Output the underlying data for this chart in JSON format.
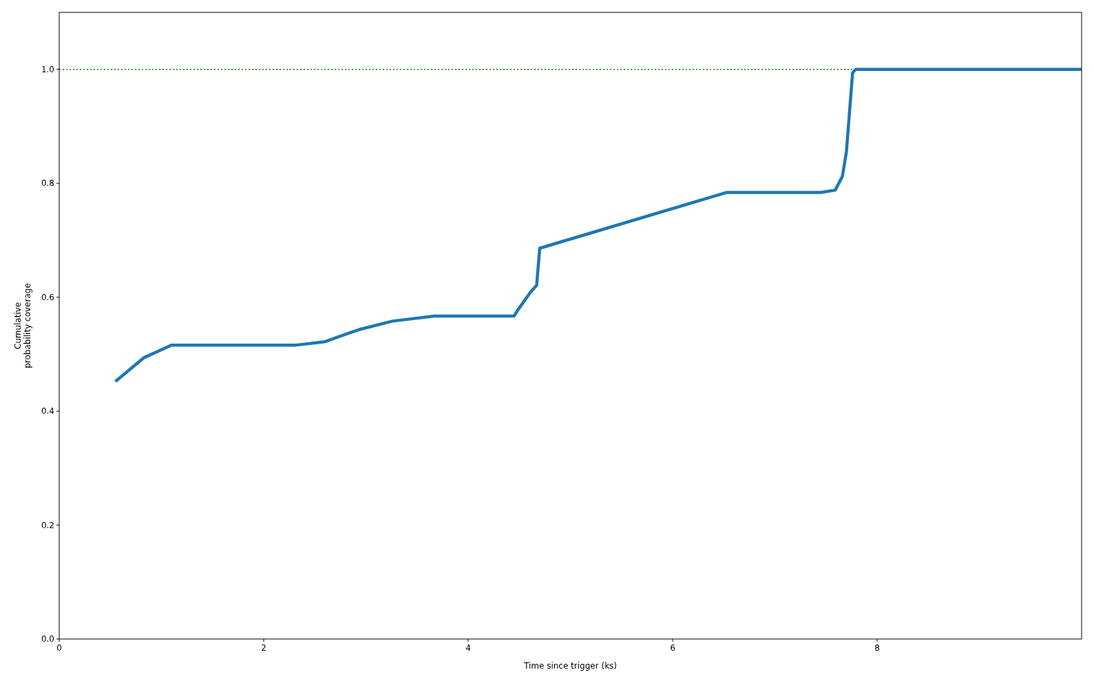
{
  "chart_data": {
    "type": "line",
    "xlabel": "Time since trigger (ks)",
    "ylabel": "Cumulative\nprobability coverage",
    "xlim": [
      0,
      10
    ],
    "xticks": [
      0,
      2,
      4,
      6,
      8
    ],
    "ylim": [
      0,
      1.1
    ],
    "yticks": [
      {
        "value": 0,
        "label": "0.0"
      },
      0.2,
      0.4,
      0.6,
      0.8,
      {
        "value": 1,
        "label": "1.0"
      }
    ],
    "x": [
      0.55,
      0.83,
      1.1,
      2.32,
      2.6,
      2.93,
      3.26,
      3.67,
      4.45,
      4.48,
      4.61,
      4.67,
      4.7,
      6.53,
      7.45,
      7.59,
      7.66,
      7.7,
      7.76,
      7.79,
      10
    ],
    "series": [
      {
        "color": "#1f77b4",
        "values": [
          0.452,
          0.494,
          0.516,
          0.516,
          0.522,
          0.543,
          0.558,
          0.567,
          0.567,
          0.576,
          0.609,
          0.621,
          0.686,
          0.784,
          0.784,
          0.788,
          0.812,
          0.856,
          0.994,
          1.0,
          1.0
        ]
      }
    ],
    "ref_lines": [
      {
        "axis": "y",
        "value": 1.0,
        "color": "#008000",
        "line_style": "dotted"
      }
    ],
    "grid": false
  }
}
